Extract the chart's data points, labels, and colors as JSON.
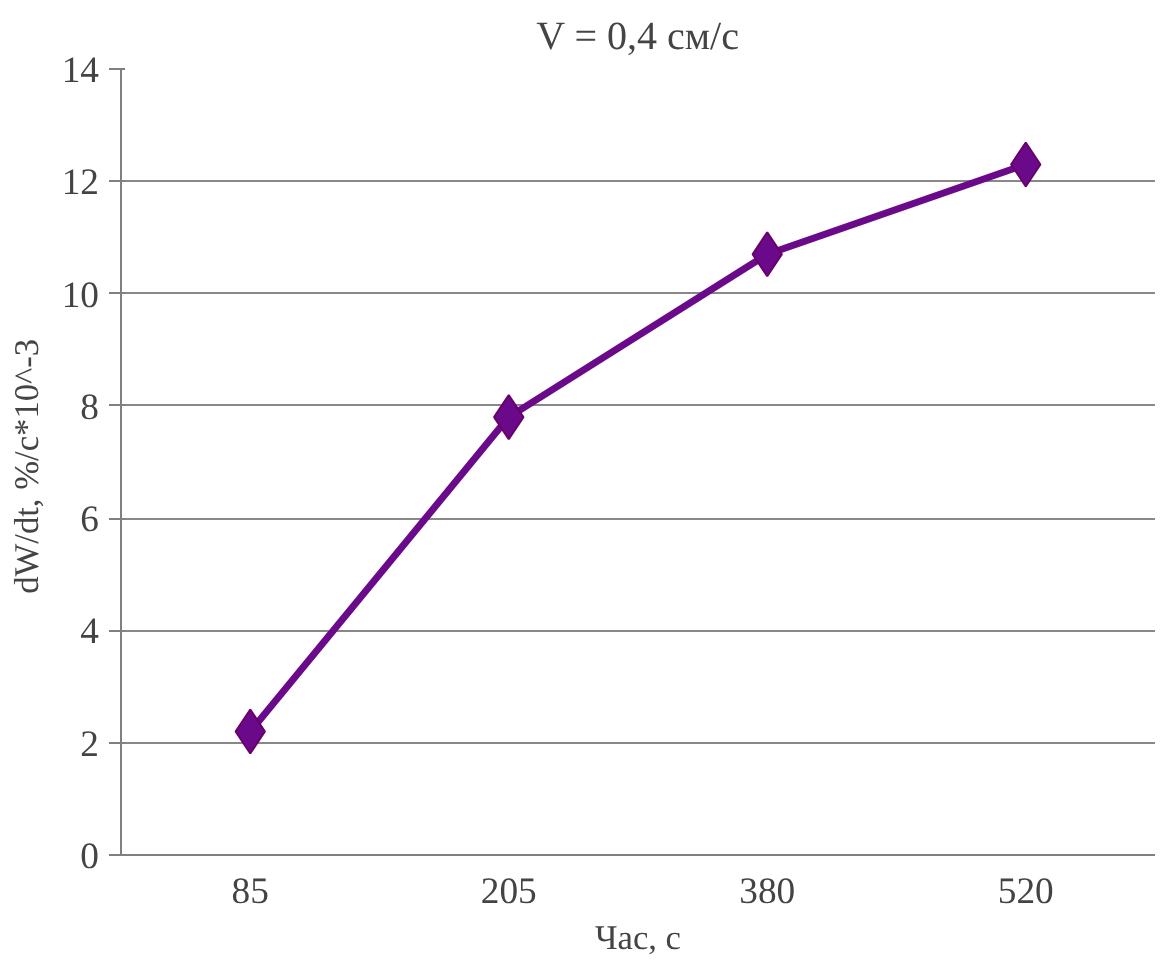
{
  "chart_data": {
    "type": "line",
    "title": "V = 0,4 см/с",
    "xlabel": "Час, с",
    "ylabel": "dW/dt,  %/с*10^-3",
    "categories": [
      "85",
      "205",
      "380",
      "520"
    ],
    "series": [
      {
        "color": "#6a0a8a",
        "values": [
          2.2,
          7.8,
          10.7,
          12.3
        ]
      }
    ],
    "ylim": [
      0,
      14
    ],
    "yticks": [
      0,
      2,
      4,
      6,
      8,
      10,
      12,
      14
    ],
    "grid": "y",
    "marker": "diamond"
  }
}
